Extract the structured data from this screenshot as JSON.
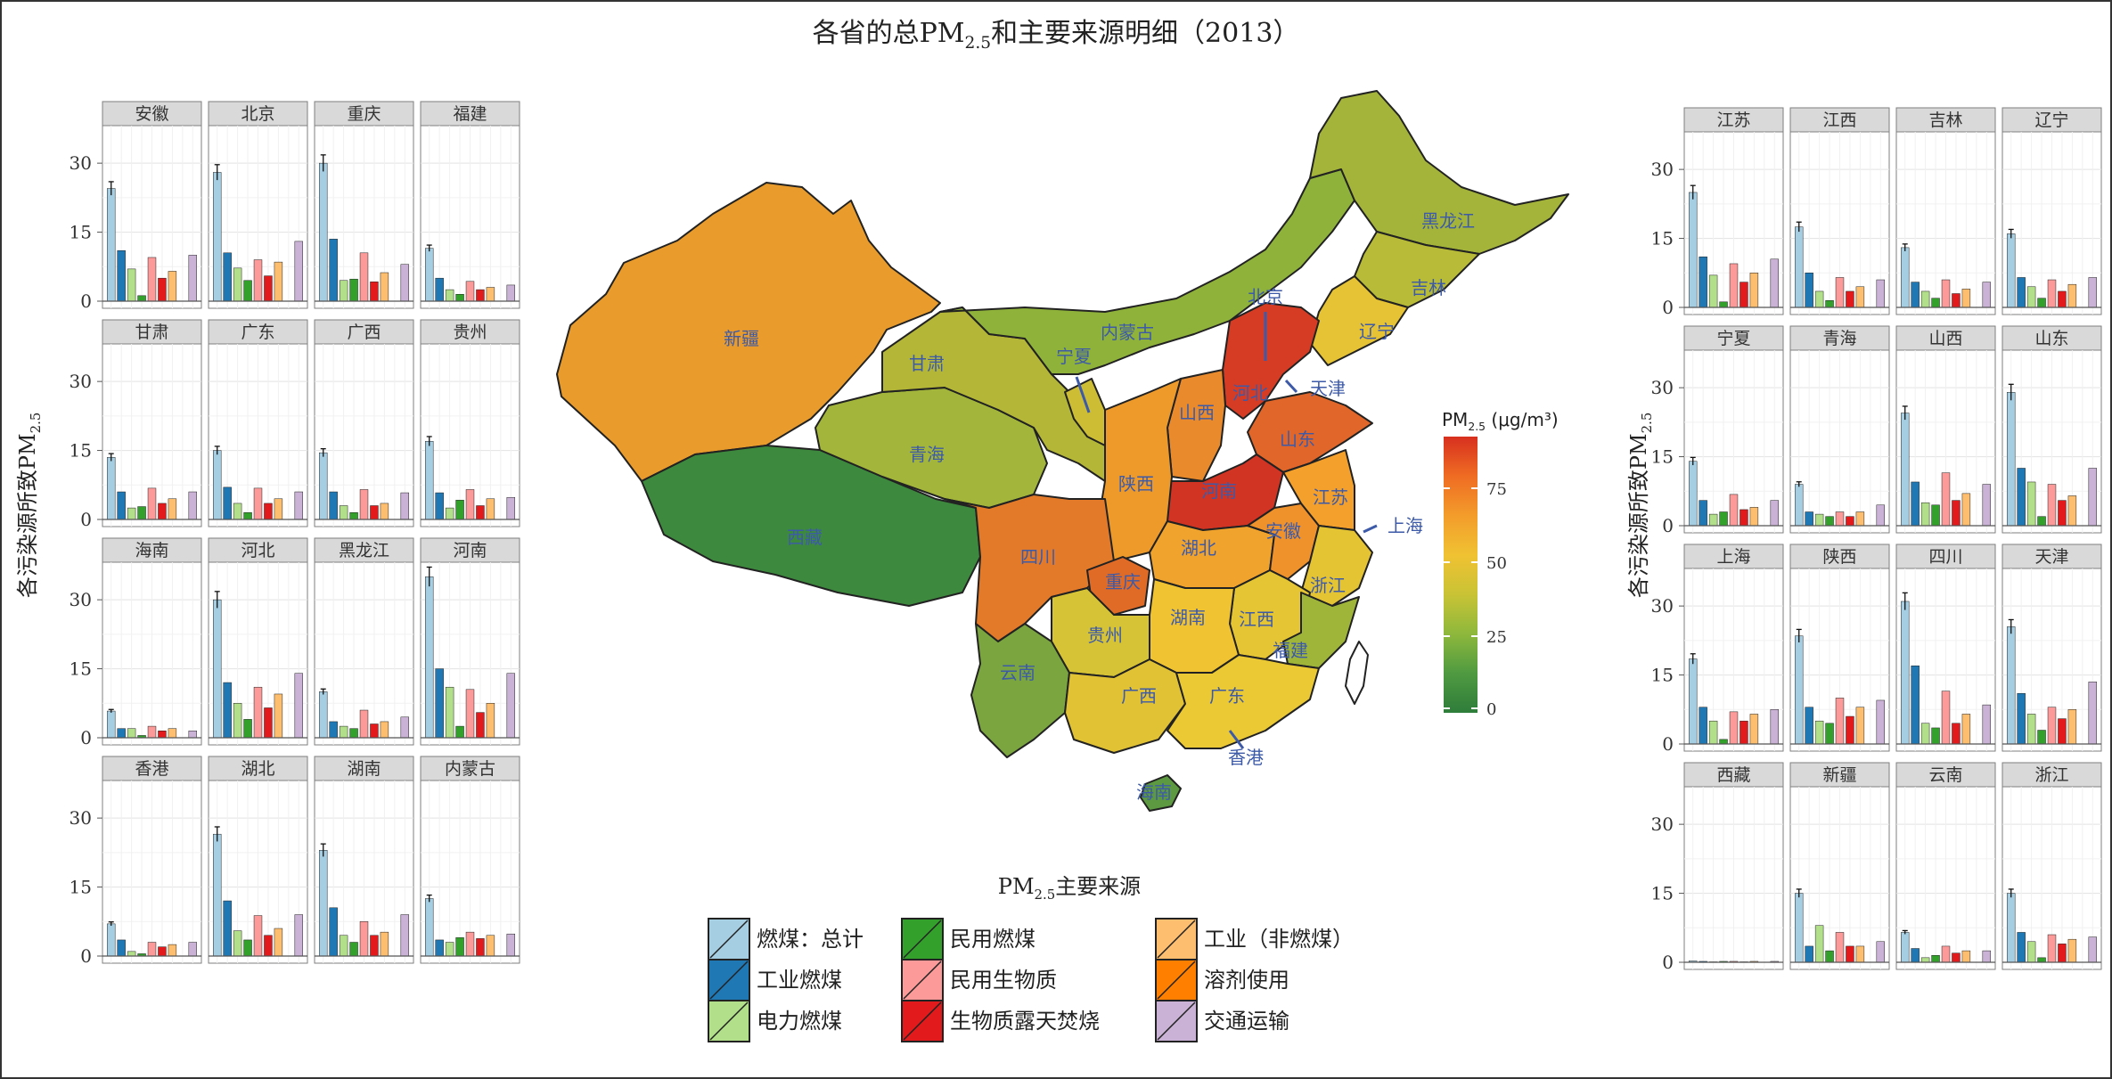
{
  "title": {
    "main": "各省的总PM",
    "sub": "2.5",
    "rest": "和主要来源明细（2013）"
  },
  "ylabel": {
    "main": "各污染源所致PM",
    "sub": "2.5"
  },
  "legend": {
    "title_main": "PM",
    "title_sub": "2.5",
    "title_rest": "主要来源",
    "items": [
      {
        "label": "燃煤：总计",
        "color": "#a6cee3"
      },
      {
        "label": "民用燃煤",
        "color": "#33a02c"
      },
      {
        "label": "工业（非燃煤）",
        "color": "#fdbf6f"
      },
      {
        "label": "工业燃煤",
        "color": "#1f78b4"
      },
      {
        "label": "民用生物质",
        "color": "#fb9a99"
      },
      {
        "label": "溶剂使用",
        "color": "#ff7f00"
      },
      {
        "label": "电力燃煤",
        "color": "#b2df8a"
      },
      {
        "label": "生物质露天焚烧",
        "color": "#e31a1c"
      },
      {
        "label": "交通运输",
        "color": "#cab2d6"
      }
    ]
  },
  "colorbar": {
    "title_main": "PM",
    "title_sub": "2.5",
    "title_rest": " (μg/m³)",
    "ticks": [
      "75",
      "50",
      "25",
      "0"
    ],
    "colors": [
      "#d7301f",
      "#ef6c23",
      "#f39c2b",
      "#f0c232",
      "#c9c335",
      "#8eb83c",
      "#4f9a41",
      "#2e7d3a"
    ]
  },
  "map_labels": [
    "新疆",
    "西藏",
    "青海",
    "甘肃",
    "内蒙古",
    "宁夏",
    "陕西",
    "山西",
    "河北",
    "北京",
    "天津",
    "辽宁",
    "吉林",
    "黑龙江",
    "山东",
    "河南",
    "江苏",
    "上海",
    "安徽",
    "湖北",
    "四川",
    "重庆",
    "贵州",
    "云南",
    "广西",
    "广东",
    "香港",
    "海南",
    "湖南",
    "江西",
    "浙江",
    "福建"
  ],
  "chart_data": {
    "type": "bar",
    "description_note": "",
    "categories": [
      "燃煤：总计",
      "工业燃煤",
      "电力燃煤",
      "民用燃煤",
      "民用生物质",
      "生物质露天焚烧",
      "工业（非燃煤）",
      "溶剂使用",
      "交通运输"
    ],
    "yticks": [
      0,
      15,
      30
    ],
    "ylim": [
      0,
      37
    ],
    "colors": [
      "#a6cee3",
      "#1f78b4",
      "#b2df8a",
      "#33a02c",
      "#fb9a99",
      "#e31a1c",
      "#fdbf6f",
      "#ff7f00",
      "#cab2d6"
    ],
    "panels": [
      {
        "name": "安徽",
        "values": [
          24.5,
          11,
          7,
          1.2,
          9.5,
          5,
          6.5,
          0,
          10
        ]
      },
      {
        "name": "北京",
        "values": [
          28,
          10.5,
          7.2,
          4.5,
          9,
          5.5,
          8.5,
          0,
          13
        ]
      },
      {
        "name": "重庆",
        "values": [
          30,
          13.5,
          4.5,
          4.8,
          10.5,
          4.2,
          6.2,
          0,
          8
        ]
      },
      {
        "name": "福建",
        "values": [
          11.5,
          5,
          2.5,
          1.5,
          4.3,
          2.5,
          3,
          0,
          3.5
        ]
      },
      {
        "name": "甘肃",
        "values": [
          13.5,
          6,
          2.5,
          2.8,
          6.8,
          3.5,
          4.5,
          0,
          6
        ]
      },
      {
        "name": "广东",
        "values": [
          15,
          7,
          3.5,
          1.5,
          6.8,
          3.5,
          4.5,
          0,
          6
        ]
      },
      {
        "name": "广西",
        "values": [
          14.5,
          6,
          3,
          1.5,
          6.5,
          3,
          3.5,
          0,
          5.8
        ]
      },
      {
        "name": "贵州",
        "values": [
          17,
          5.8,
          2.5,
          4.2,
          6.5,
          3,
          4.5,
          0,
          4.8
        ]
      },
      {
        "name": "海南",
        "values": [
          5.8,
          2,
          2,
          0.5,
          2.5,
          1.5,
          2,
          0,
          1.5
        ]
      },
      {
        "name": "河北",
        "values": [
          30,
          12,
          7.5,
          4,
          11,
          6.5,
          9.5,
          0,
          14
        ]
      },
      {
        "name": "黑龙江",
        "values": [
          10,
          3.5,
          2.5,
          2,
          6,
          3,
          3.5,
          0,
          4.5
        ]
      },
      {
        "name": "河南",
        "values": [
          35,
          15,
          11,
          2.5,
          10.5,
          5.5,
          7.5,
          0,
          14
        ]
      },
      {
        "name": "香港",
        "values": [
          7,
          3.5,
          1,
          0.5,
          3,
          2,
          2.5,
          0,
          3
        ]
      },
      {
        "name": "湖北",
        "values": [
          26.5,
          12,
          5.5,
          3.5,
          8.8,
          4.5,
          6,
          0,
          9
        ]
      },
      {
        "name": "湖南",
        "values": [
          23,
          10.5,
          4.5,
          3,
          7.5,
          4.5,
          5.2,
          0,
          9
        ]
      },
      {
        "name": "内蒙古",
        "values": [
          12.5,
          3.5,
          3,
          4,
          5.2,
          3.8,
          4.5,
          0,
          4.8
        ]
      },
      {
        "name": "江苏",
        "values": [
          25,
          11,
          7,
          1.2,
          9.5,
          5.5,
          7.5,
          0,
          10.5
        ]
      },
      {
        "name": "江西",
        "values": [
          17.5,
          7.5,
          3.5,
          1.5,
          6.5,
          3.5,
          4.5,
          0,
          6
        ]
      },
      {
        "name": "吉林",
        "values": [
          13,
          5.5,
          3.5,
          2,
          6,
          3,
          4,
          0,
          5.5
        ]
      },
      {
        "name": "辽宁",
        "values": [
          16,
          6.5,
          4.5,
          2,
          6,
          3.5,
          5,
          0,
          6.5
        ]
      },
      {
        "name": "宁夏",
        "values": [
          14,
          5.5,
          2.5,
          3,
          6.8,
          3.5,
          4,
          0,
          5.5
        ]
      },
      {
        "name": "青海",
        "values": [
          9,
          3,
          2.5,
          2,
          3,
          2,
          3,
          0,
          4.5
        ]
      },
      {
        "name": "山西",
        "values": [
          24.5,
          9.5,
          5,
          4.5,
          11.5,
          5.5,
          7,
          0,
          9
        ]
      },
      {
        "name": "山东",
        "values": [
          29,
          12.5,
          9.5,
          2,
          9,
          5.5,
          6.5,
          0,
          12.5
        ]
      },
      {
        "name": "上海",
        "values": [
          18.5,
          8,
          5,
          1,
          7,
          5,
          6.5,
          0,
          7.5
        ]
      },
      {
        "name": "陕西",
        "values": [
          23.5,
          8,
          5,
          4.5,
          10,
          6,
          8,
          0,
          9.5
        ]
      },
      {
        "name": "四川",
        "values": [
          31,
          17,
          4.5,
          3.5,
          11.5,
          4.5,
          6.5,
          0,
          8.5
        ]
      },
      {
        "name": "天津",
        "values": [
          25.5,
          11,
          6.5,
          3,
          8,
          5.5,
          7.5,
          0,
          13.5
        ]
      },
      {
        "name": "西藏",
        "values": [
          0.3,
          0.2,
          0.1,
          0.2,
          0.2,
          0.1,
          0.2,
          0,
          0.2
        ]
      },
      {
        "name": "新疆",
        "values": [
          15,
          3.5,
          8,
          2.5,
          6.5,
          3.5,
          3.5,
          0,
          4.5
        ]
      },
      {
        "name": "云南",
        "values": [
          6.5,
          3,
          1,
          1.5,
          3.5,
          2,
          2.5,
          0,
          2.5
        ]
      },
      {
        "name": "浙江",
        "values": [
          15,
          6.5,
          4.5,
          1,
          6,
          4,
          5,
          0,
          5.5
        ]
      }
    ]
  }
}
